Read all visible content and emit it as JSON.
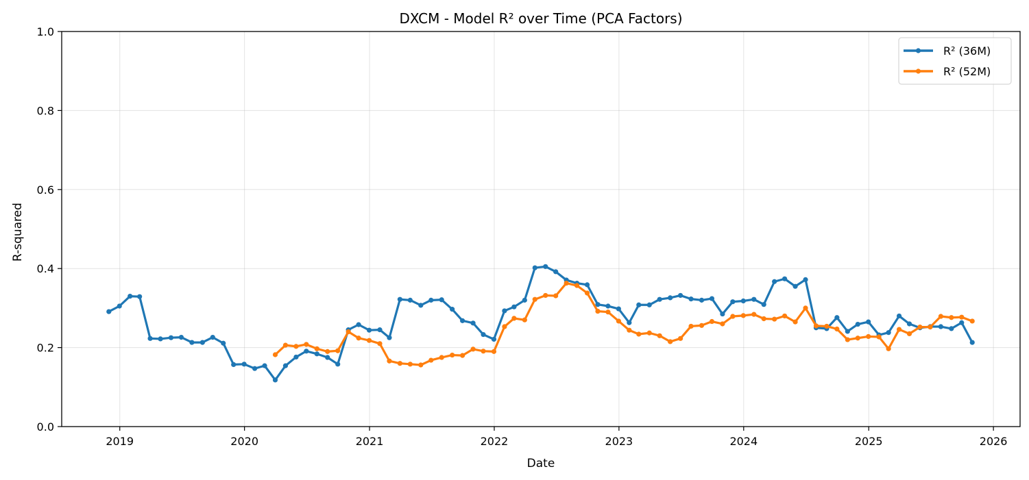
{
  "chart_data": {
    "type": "line",
    "title": "DXCM - Model R² over Time (PCA Factors)",
    "xlabel": "Date",
    "ylabel": "R-squared",
    "xlim": [
      "2018-07-15",
      "2026-03-20"
    ],
    "ylim": [
      0.0,
      1.0
    ],
    "xticks": [
      "2019-01-01",
      "2020-01-01",
      "2021-01-01",
      "2022-01-01",
      "2023-01-01",
      "2024-01-01",
      "2025-01-01",
      "2026-01-01"
    ],
    "xtick_labels": [
      "2019",
      "2020",
      "2021",
      "2022",
      "2023",
      "2024",
      "2025",
      "2026"
    ],
    "yticks": [
      0.0,
      0.2,
      0.4,
      0.6,
      0.8,
      1.0
    ],
    "ytick_labels": [
      "0.0",
      "0.2",
      "0.4",
      "0.6",
      "0.8",
      "1.0"
    ],
    "grid": true,
    "legend_position": "top-right",
    "series": [
      {
        "name": "R² (36M)",
        "color": "#1f77b4",
        "x": [
          "2018-11-30",
          "2018-12-31",
          "2019-01-31",
          "2019-02-28",
          "2019-03-31",
          "2019-04-30",
          "2019-05-31",
          "2019-06-30",
          "2019-07-31",
          "2019-08-31",
          "2019-09-30",
          "2019-10-31",
          "2019-11-30",
          "2019-12-31",
          "2020-01-31",
          "2020-02-29",
          "2020-03-31",
          "2020-04-30",
          "2020-05-31",
          "2020-06-30",
          "2020-07-31",
          "2020-08-31",
          "2020-09-30",
          "2020-10-31",
          "2020-11-30",
          "2020-12-31",
          "2021-01-31",
          "2021-02-28",
          "2021-03-31",
          "2021-04-30",
          "2021-05-31",
          "2021-06-30",
          "2021-07-31",
          "2021-08-31",
          "2021-09-30",
          "2021-10-31",
          "2021-11-30",
          "2021-12-31",
          "2022-01-31",
          "2022-02-28",
          "2022-03-31",
          "2022-04-30",
          "2022-05-31",
          "2022-06-30",
          "2022-07-31",
          "2022-08-31",
          "2022-09-30",
          "2022-10-31",
          "2022-11-30",
          "2022-12-31",
          "2023-01-31",
          "2023-02-28",
          "2023-03-31",
          "2023-04-30",
          "2023-05-31",
          "2023-06-30",
          "2023-07-31",
          "2023-08-31",
          "2023-09-30",
          "2023-10-31",
          "2023-11-30",
          "2023-12-31",
          "2024-01-31",
          "2024-02-29",
          "2024-03-31",
          "2024-04-30",
          "2024-05-31",
          "2024-06-30",
          "2024-07-31",
          "2024-08-31",
          "2024-09-30",
          "2024-10-31",
          "2024-11-30",
          "2024-12-31",
          "2025-01-31",
          "2025-02-28",
          "2025-03-31",
          "2025-04-30",
          "2025-05-31",
          "2025-06-30",
          "2025-07-31",
          "2025-08-31",
          "2025-09-30",
          "2025-10-31"
        ],
        "y": [
          0.291,
          0.305,
          0.33,
          0.329,
          0.223,
          0.222,
          0.225,
          0.226,
          0.213,
          0.213,
          0.226,
          0.211,
          0.157,
          0.158,
          0.147,
          0.154,
          0.118,
          0.154,
          0.176,
          0.191,
          0.184,
          0.175,
          0.158,
          0.245,
          0.258,
          0.244,
          0.245,
          0.225,
          0.322,
          0.32,
          0.307,
          0.32,
          0.321,
          0.297,
          0.268,
          0.262,
          0.233,
          0.221,
          0.293,
          0.303,
          0.32,
          0.402,
          0.405,
          0.392,
          0.371,
          0.363,
          0.359,
          0.309,
          0.305,
          0.298,
          0.263,
          0.308,
          0.308,
          0.322,
          0.326,
          0.332,
          0.323,
          0.32,
          0.324,
          0.285,
          0.316,
          0.318,
          0.322,
          0.309,
          0.367,
          0.374,
          0.355,
          0.372,
          0.25,
          0.248,
          0.276,
          0.241,
          0.259,
          0.265,
          0.232,
          0.238,
          0.28,
          0.26,
          0.25,
          0.253,
          0.253,
          0.248,
          0.263,
          0.213
        ]
      },
      {
        "name": "R² (52M)",
        "color": "#ff7f0e",
        "x": [
          "2020-03-31",
          "2020-04-30",
          "2020-05-31",
          "2020-06-30",
          "2020-07-31",
          "2020-08-31",
          "2020-09-30",
          "2020-10-31",
          "2020-11-30",
          "2020-12-31",
          "2021-01-31",
          "2021-02-28",
          "2021-03-31",
          "2021-04-30",
          "2021-05-31",
          "2021-06-30",
          "2021-07-31",
          "2021-08-31",
          "2021-09-30",
          "2021-10-31",
          "2021-11-30",
          "2021-12-31",
          "2022-01-31",
          "2022-02-28",
          "2022-03-31",
          "2022-04-30",
          "2022-05-31",
          "2022-06-30",
          "2022-07-31",
          "2022-08-31",
          "2022-09-30",
          "2022-10-31",
          "2022-11-30",
          "2022-12-31",
          "2023-01-31",
          "2023-02-28",
          "2023-03-31",
          "2023-04-30",
          "2023-05-31",
          "2023-06-30",
          "2023-07-31",
          "2023-08-31",
          "2023-09-30",
          "2023-10-31",
          "2023-11-30",
          "2023-12-31",
          "2024-01-31",
          "2024-02-29",
          "2024-03-31",
          "2024-04-30",
          "2024-05-31",
          "2024-06-30",
          "2024-07-31",
          "2024-08-31",
          "2024-09-30",
          "2024-10-31",
          "2024-11-30",
          "2024-12-31",
          "2025-01-31",
          "2025-02-28",
          "2025-03-31",
          "2025-04-30",
          "2025-05-31",
          "2025-06-30",
          "2025-07-31",
          "2025-08-31",
          "2025-09-30",
          "2025-10-31"
        ],
        "y": [
          0.182,
          0.206,
          0.203,
          0.208,
          0.197,
          0.19,
          0.192,
          0.24,
          0.224,
          0.218,
          0.21,
          0.166,
          0.16,
          0.158,
          0.156,
          0.168,
          0.175,
          0.181,
          0.18,
          0.196,
          0.191,
          0.19,
          0.253,
          0.274,
          0.27,
          0.322,
          0.332,
          0.331,
          0.363,
          0.357,
          0.338,
          0.292,
          0.29,
          0.267,
          0.244,
          0.234,
          0.237,
          0.23,
          0.215,
          0.223,
          0.254,
          0.256,
          0.266,
          0.26,
          0.279,
          0.281,
          0.284,
          0.273,
          0.272,
          0.28,
          0.265,
          0.3,
          0.255,
          0.254,
          0.247,
          0.22,
          0.224,
          0.228,
          0.227,
          0.197,
          0.246,
          0.235,
          0.252,
          0.252,
          0.279,
          0.276,
          0.277,
          0.267
        ]
      }
    ]
  }
}
